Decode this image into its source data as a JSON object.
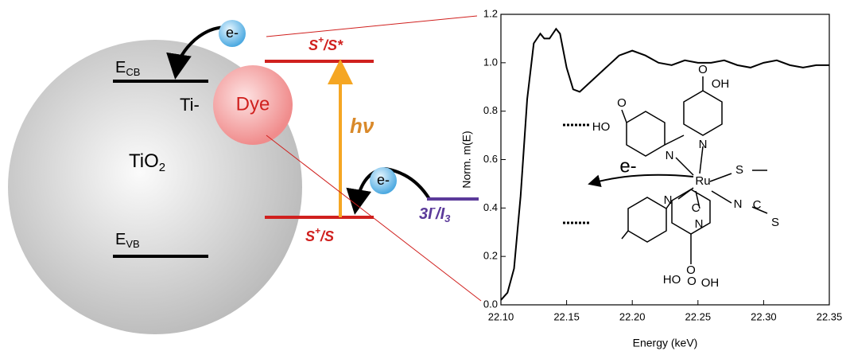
{
  "diagram": {
    "electron": "e-",
    "ecb": [
      "E",
      "CB"
    ],
    "ti": "Ti-",
    "tio2": [
      "TiO",
      "2"
    ],
    "evb": [
      "E",
      "VB"
    ],
    "dye": "Dye",
    "excited": [
      "S",
      "+",
      "/S*"
    ],
    "ground": [
      "S",
      "+",
      "/S"
    ],
    "photon": "hν",
    "redox": [
      "3I",
      "-",
      "/I",
      "3"
    ],
    "atoms": [
      "O",
      "OH",
      "O",
      "HO",
      "N",
      "N",
      "Ru",
      "N",
      "C",
      "S",
      "N",
      "N",
      "C",
      "S",
      "O",
      "HO",
      "O",
      "OH"
    ],
    "molecule_electron": "e-"
  },
  "chart_data": {
    "type": "line",
    "x_label": "Energy (keV)",
    "y_label": "Norm. m(E)",
    "color": "#000000",
    "x": [
      22.1,
      22.105,
      22.11,
      22.115,
      22.12,
      22.125,
      22.13,
      22.133,
      22.137,
      22.142,
      22.145,
      22.15,
      22.155,
      22.16,
      22.17,
      22.18,
      22.19,
      22.2,
      22.21,
      22.22,
      22.23,
      22.24,
      22.25,
      22.26,
      22.27,
      22.28,
      22.29,
      22.3,
      22.31,
      22.32,
      22.33,
      22.34,
      22.35
    ],
    "values": [
      0.02,
      0.05,
      0.15,
      0.45,
      0.85,
      1.08,
      1.12,
      1.1,
      1.1,
      1.14,
      1.12,
      0.98,
      0.89,
      0.88,
      0.93,
      0.98,
      1.03,
      1.05,
      1.03,
      1.0,
      0.99,
      1.01,
      1.0,
      1.0,
      1.01,
      0.99,
      0.98,
      1.0,
      1.01,
      0.99,
      0.98,
      0.99,
      0.99
    ],
    "xlim": [
      22.1,
      22.35
    ],
    "xticks": [
      {
        "value": 22.1,
        "label": "22.10"
      },
      22.15,
      {
        "value": 22.2,
        "label": "22.20"
      },
      22.25,
      {
        "value": 22.3,
        "label": "22.30"
      },
      22.35
    ],
    "ylim": [
      0,
      1.2
    ],
    "yticks": [
      {
        "value": 0,
        "label": "0.0"
      },
      0.2,
      0.4,
      0.6,
      0.8,
      {
        "value": 1.0,
        "label": "1.0"
      },
      1.2
    ]
  }
}
